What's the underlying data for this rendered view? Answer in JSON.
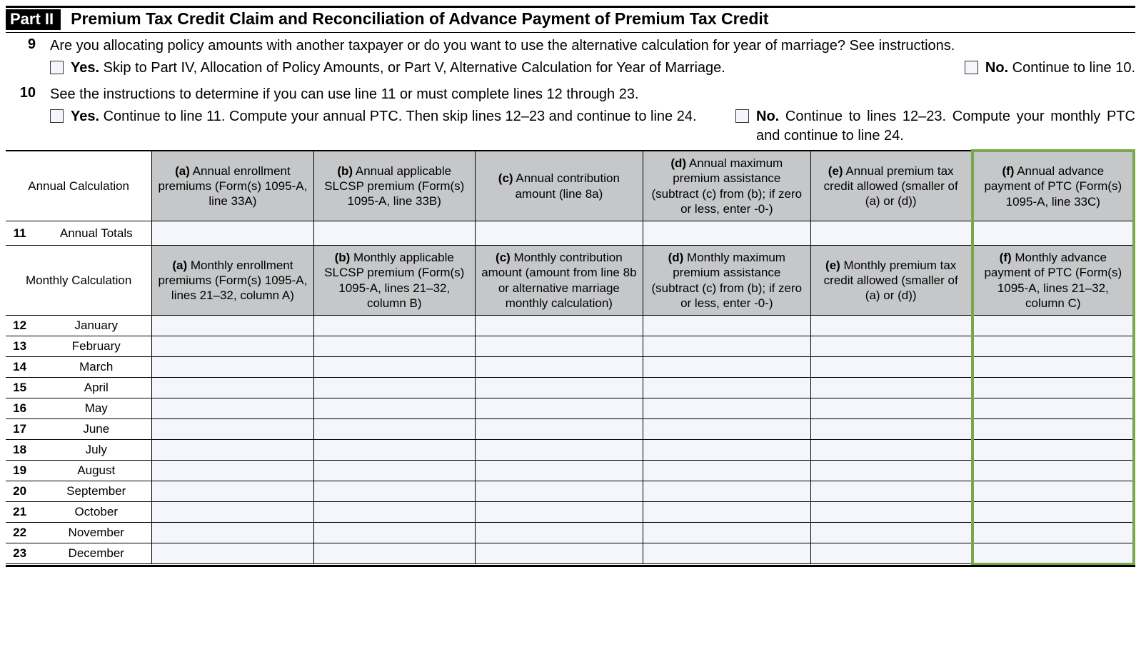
{
  "colors": {
    "highlight_border": "#77a84a",
    "header_cell_bg": "#c6c7c9",
    "input_cell_bg": "#f4f6fb",
    "part_badge_bg": "#000000",
    "part_badge_fg": "#ffffff"
  },
  "part": {
    "badge": "Part II",
    "title": "Premium Tax Credit Claim and Reconciliation of Advance Payment of Premium Tax Credit"
  },
  "q9": {
    "num": "9",
    "text": "Are you allocating policy amounts with another taxpayer or do you want to use the alternative calculation for year of marriage? See instructions.",
    "yes_label": "Yes.",
    "yes_text": " Skip to Part IV, Allocation of Policy Amounts, or Part V, Alternative Calculation for Year of Marriage.",
    "no_label": "No.",
    "no_text": " Continue to line 10."
  },
  "q10": {
    "num": "10",
    "text": "See the instructions to determine if you can use line 11 or must complete lines 12 through 23.",
    "yes_label": "Yes.",
    "yes_text": " Continue to line 11. Compute your annual PTC. Then skip lines 12–23 and continue to line 24.",
    "no_label": "No.",
    "no_text": " Continue to lines 12–23. Compute your monthly PTC and continue to line 24."
  },
  "table": {
    "annual_row_header": "Annual Calculation",
    "annual_cols": {
      "a": "(a) Annual enrollment premiums (Form(s) 1095-A, line 33A)",
      "b": "(b) Annual applicable SLCSP premium (Form(s) 1095-A, line 33B)",
      "c": "(c) Annual contribution amount (line 8a)",
      "d": "(d) Annual maximum premium assistance (subtract (c) from (b); if zero or less, enter -0-)",
      "e": "(e) Annual premium tax credit allowed (smaller of (a) or (d))",
      "f": "(f) Annual advance payment of PTC (Form(s) 1095-A, line 33C)"
    },
    "annual_totals": {
      "num": "11",
      "label": "Annual Totals"
    },
    "monthly_row_header": "Monthly Calculation",
    "monthly_cols": {
      "a": "(a) Monthly enrollment premiums (Form(s) 1095-A, lines 21–32, column A)",
      "b": "(b) Monthly applicable SLCSP premium (Form(s) 1095-A, lines 21–32, column B)",
      "c": "(c) Monthly contribution amount (amount from line 8b or alternative marriage monthly calculation)",
      "d": "(d) Monthly maximum premium assistance (subtract (c) from (b); if zero or less, enter -0-)",
      "e": "(e) Monthly premium tax credit allowed (smaller of (a) or (d))",
      "f": "(f) Monthly advance payment of PTC (Form(s) 1095-A, lines 21–32, column C)"
    },
    "months": [
      {
        "num": "12",
        "label": "January"
      },
      {
        "num": "13",
        "label": "February"
      },
      {
        "num": "14",
        "label": "March"
      },
      {
        "num": "15",
        "label": "April"
      },
      {
        "num": "16",
        "label": "May"
      },
      {
        "num": "17",
        "label": "June"
      },
      {
        "num": "18",
        "label": "July"
      },
      {
        "num": "19",
        "label": "August"
      },
      {
        "num": "20",
        "label": "September"
      },
      {
        "num": "21",
        "label": "October"
      },
      {
        "num": "22",
        "label": "November"
      },
      {
        "num": "23",
        "label": "December"
      }
    ]
  }
}
